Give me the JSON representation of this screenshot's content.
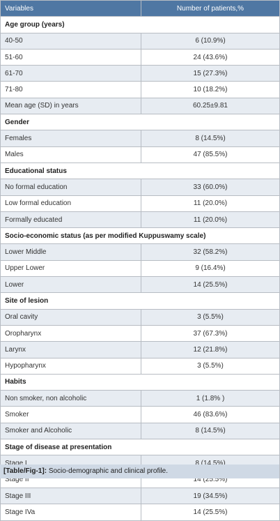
{
  "table": {
    "header": {
      "variables": "Variables",
      "count": "Number of patients,%"
    },
    "sections": [
      {
        "title": "Age group (years)",
        "rows": [
          {
            "label": "40-50",
            "value": "6 (10.9%)"
          },
          {
            "label": "51-60",
            "value": "24 (43.6%)"
          },
          {
            "label": "61-70",
            "value": "15 (27.3%)"
          },
          {
            "label": "71-80",
            "value": "10 (18.2%)"
          },
          {
            "label": "Mean age (SD) in years",
            "value": "60.25±9.81"
          }
        ]
      },
      {
        "title": "Gender",
        "rows": [
          {
            "label": "Females",
            "value": "8 (14.5%)"
          },
          {
            "label": "Males",
            "value": "47 (85.5%)"
          }
        ]
      },
      {
        "title": "Educational status",
        "rows": [
          {
            "label": "No formal education",
            "value": "33 (60.0%)"
          },
          {
            "label": "Low formal education",
            "value": "11 (20.0%)"
          },
          {
            "label": "Formally educated",
            "value": "11 (20.0%)"
          }
        ]
      },
      {
        "title": "Socio-economic status (as per modified Kuppuswamy scale)",
        "rows": [
          {
            "label": "Lower Middle",
            "value": "32 (58.2%)"
          },
          {
            "label": "Upper Lower",
            "value": "9 (16.4%)"
          },
          {
            "label": "Lower",
            "value": "14 (25.5%)"
          }
        ]
      },
      {
        "title": "Site of lesion",
        "rows": [
          {
            "label": "Oral cavity",
            "value": "3 (5.5%)"
          },
          {
            "label": "Oropharynx",
            "value": "37 (67.3%)"
          },
          {
            "label": "Larynx",
            "value": "12 (21.8%)"
          },
          {
            "label": "Hypopharynx",
            "value": "3 (5.5%)"
          }
        ]
      },
      {
        "title": "Habits",
        "rows": [
          {
            "label": "Non smoker, non alcoholic",
            "value": "1 (1.8% )"
          },
          {
            "label": "Smoker",
            "value": "46 (83.6%)"
          },
          {
            "label": "Smoker and Alcoholic",
            "value": "8 (14.5%)"
          }
        ]
      },
      {
        "title": "Stage of disease at presentation",
        "rows": [
          {
            "label": "Stage I",
            "value": "8 (14.5%)"
          },
          {
            "label": "Stage II",
            "value": "14 (25.5%)"
          },
          {
            "label": "Stage III",
            "value": "19 (34.5%)"
          },
          {
            "label": "Stage IVa",
            "value": "14 (25.5%)"
          }
        ]
      }
    ]
  },
  "caption": {
    "label": "[Table/Fig-1]:",
    "text": "Socio-demographic and clinical profile."
  }
}
